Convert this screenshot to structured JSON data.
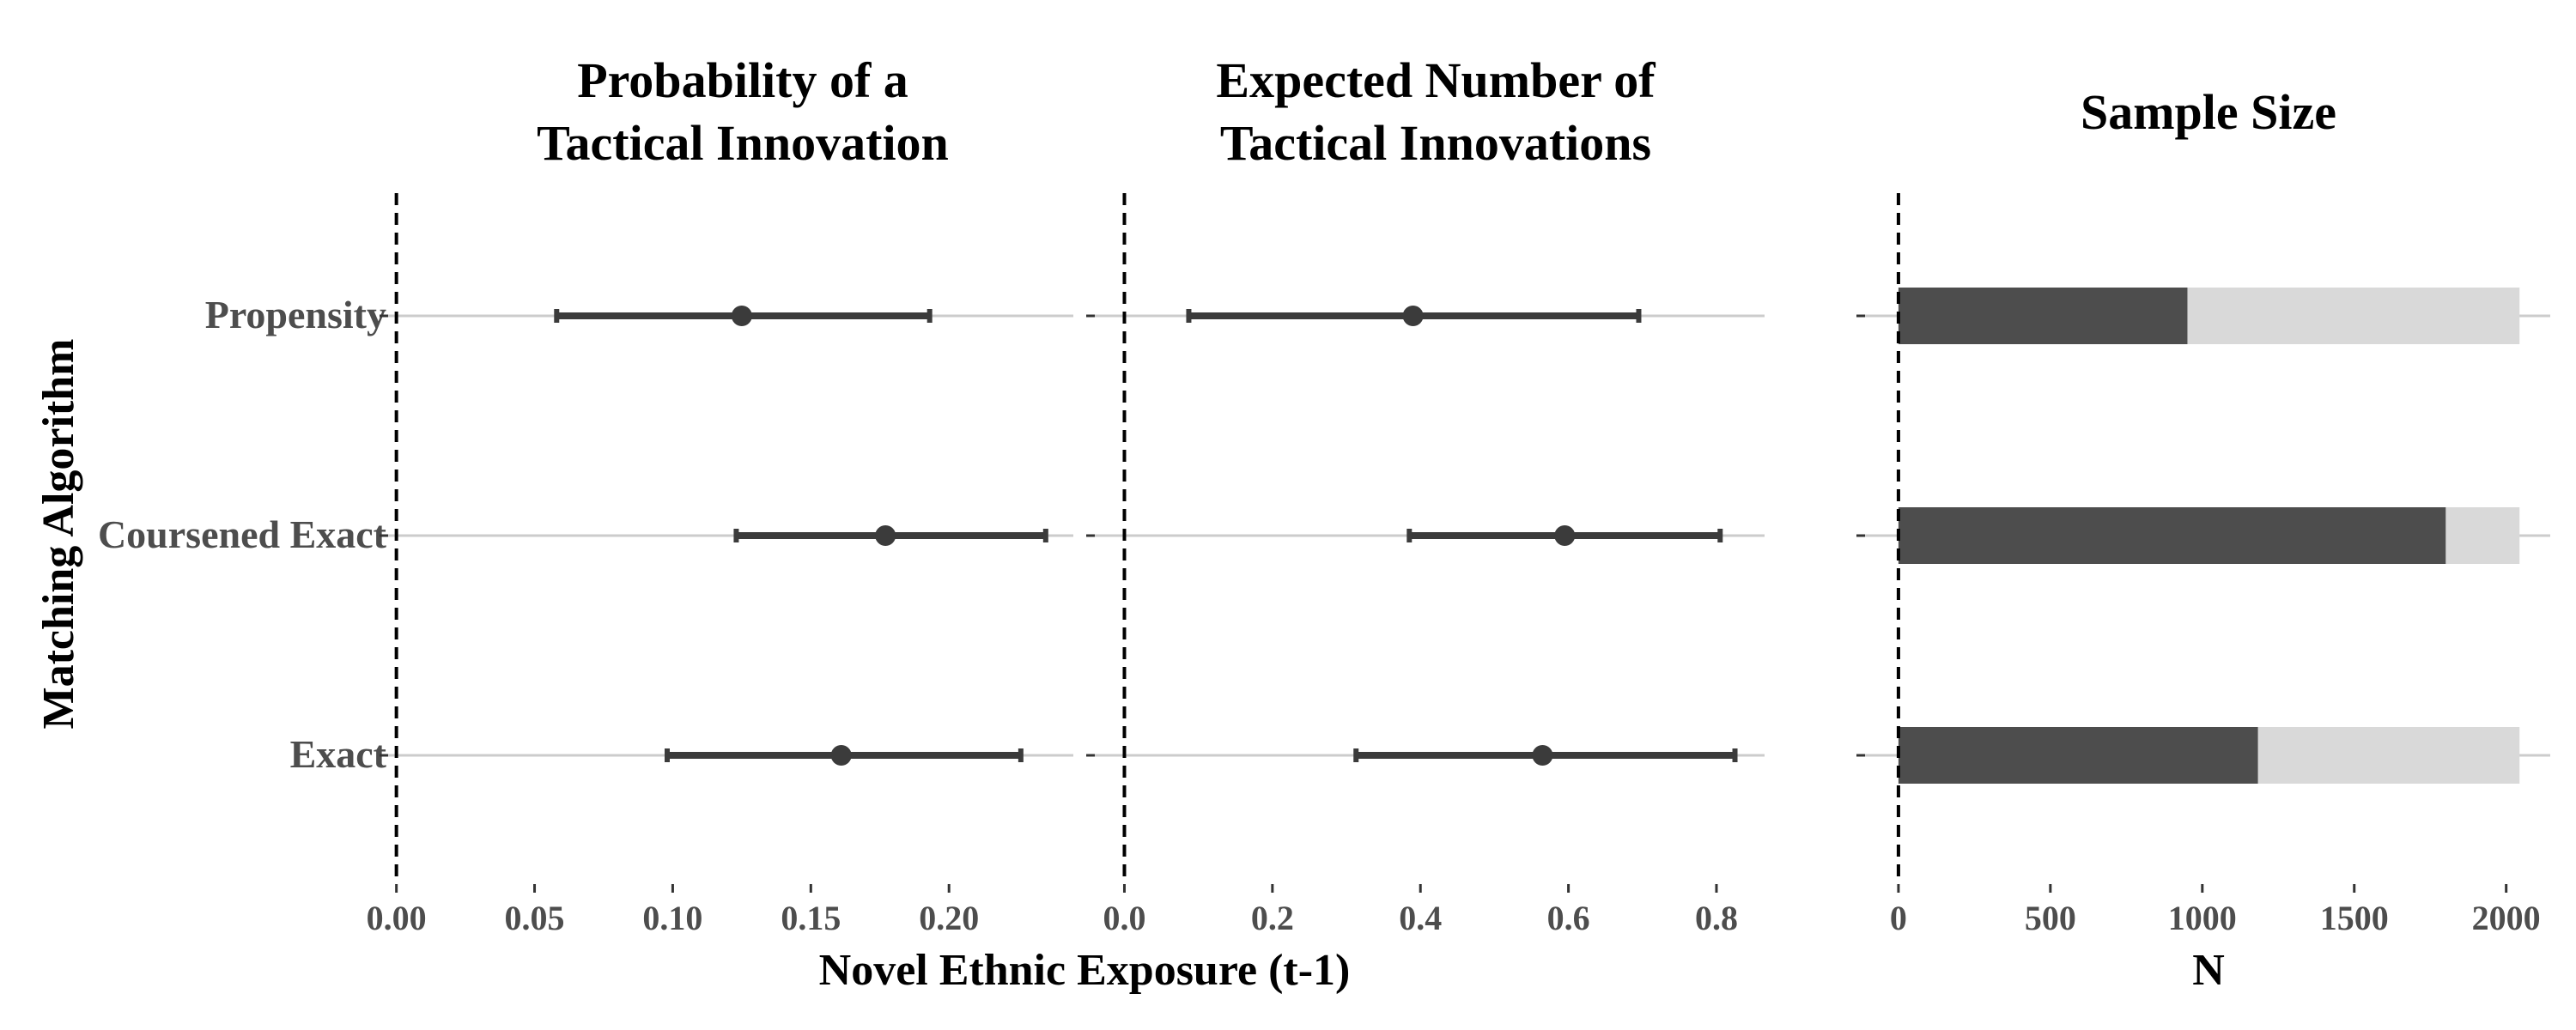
{
  "chart_data": [
    {
      "type": "dot-errorbar",
      "title_lines": [
        "Probability of a",
        "Tactical Innovation"
      ],
      "categories": [
        "Propensity",
        "Coursened Exact",
        "Exact"
      ],
      "estimate": [
        0.125,
        0.177,
        0.161
      ],
      "lower": [
        0.058,
        0.123,
        0.098
      ],
      "upper": [
        0.193,
        0.235,
        0.226
      ],
      "reference_line": 0,
      "xlim": [
        -0.003,
        0.245
      ],
      "xticks": [
        0,
        0.05,
        0.1,
        0.15,
        0.2
      ],
      "xtick_labels": [
        "0.00",
        "0.05",
        "0.10",
        "0.15",
        "0.20"
      ]
    },
    {
      "type": "dot-errorbar",
      "title_lines": [
        "Expected Number of",
        "Tactical Innovations"
      ],
      "categories": [
        "Propensity",
        "Coursened Exact",
        "Exact"
      ],
      "estimate": [
        0.39,
        0.595,
        0.565
      ],
      "lower": [
        0.087,
        0.385,
        0.313
      ],
      "upper": [
        0.695,
        0.805,
        0.825
      ],
      "reference_line": 0,
      "xlim": [
        -0.04,
        0.865
      ],
      "xticks": [
        0,
        0.2,
        0.4,
        0.6,
        0.8
      ],
      "xtick_labels": [
        "0.0",
        "0.2",
        "0.4",
        "0.6",
        "0.8"
      ]
    },
    {
      "type": "bar",
      "orientation": "horizontal",
      "title_lines": [
        "Sample Size"
      ],
      "categories": [
        "Propensity",
        "Coursened Exact",
        "Exact"
      ],
      "matched": [
        951,
        1801,
        1183
      ],
      "total": [
        2044,
        2044,
        2044
      ],
      "reference_line": 0,
      "xlim": [
        -110,
        2145
      ],
      "xticks": [
        0,
        500,
        1000,
        1500,
        2000
      ],
      "xtick_labels": [
        "0",
        "500",
        "1000",
        "1500",
        "2000"
      ],
      "xlabel": "N"
    }
  ],
  "shared": {
    "ylabel": "Matching Algorithm",
    "xlabel": "Novel Ethnic Exposure (t-1)"
  },
  "colors": {
    "estimate": "#3b3b3b",
    "matched_bar": "#4d4d4d",
    "total_bar": "#d9d9d9",
    "gridline": "#cccccc",
    "reference_line": "#000000"
  }
}
